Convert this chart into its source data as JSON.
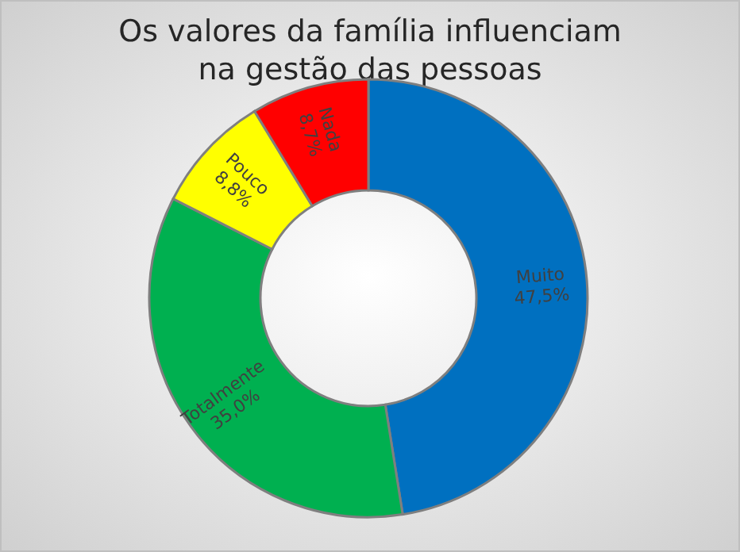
{
  "chart_data": {
    "type": "donut",
    "title": "Os valores da família influenciam na gestão das pessoas",
    "categories": [
      "Muito",
      "Totalmente",
      "Pouco",
      "Nada"
    ],
    "values": [
      47.5,
      35.0,
      8.8,
      8.7
    ],
    "value_labels": [
      "47,5%",
      "35,0%",
      "8,8%",
      "8,7%"
    ],
    "colors": [
      "#0070c0",
      "#00b050",
      "#ffff00",
      "#ff0000"
    ],
    "legend": false
  }
}
